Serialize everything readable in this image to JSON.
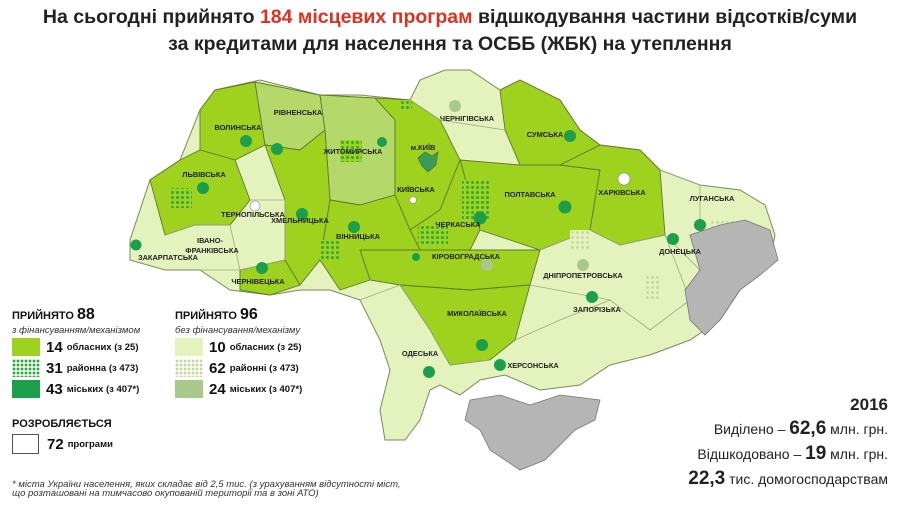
{
  "title": {
    "line1_prefix": "На сьогодні прийнято ",
    "line1_highlight": "184 місцевих програм",
    "line1_suffix": " відшкодування частини відсотків/суми",
    "line2": "за кредитами для населення та ОСББ (ЖБК) на утеплення"
  },
  "colors": {
    "funded_region": "#9fd11f",
    "unfunded_region": "#e4f2bd",
    "funded_city": "#1c9e4a",
    "unfunded_city": "#a9c98c",
    "occupied": "#b5b5b5",
    "highlight": "#e0301e"
  },
  "regions": [
    {
      "name": "ВОЛИНСЬКА",
      "funded": true
    },
    {
      "name": "РІВНЕНСЬКА",
      "funded": true
    },
    {
      "name": "ЖИТОМИРСЬКА",
      "funded": true
    },
    {
      "name": "м.КИЇВ",
      "funded": true
    },
    {
      "name": "ЧЕРНІГІВСЬКА",
      "funded": false
    },
    {
      "name": "СУМСЬКА",
      "funded": true
    },
    {
      "name": "ЛЬВІВСЬКА",
      "funded": true
    },
    {
      "name": "ТЕРНОПІЛЬСЬКА",
      "funded": false
    },
    {
      "name": "ХМЕЛЬНИЦЬКА",
      "funded": true
    },
    {
      "name": "ВІННИЦЬКА",
      "funded": true
    },
    {
      "name": "КИЇВСЬКА",
      "funded": true
    },
    {
      "name": "ЧЕРКАСЬКА",
      "funded": true
    },
    {
      "name": "ПОЛТАВСЬКА",
      "funded": true
    },
    {
      "name": "ХАРКІВСЬКА",
      "funded": true
    },
    {
      "name": "ЛУГАНСЬКА",
      "funded": false
    },
    {
      "name": "ІВАНО-",
      "funded": false
    },
    {
      "name": "ФРАНКІВСЬКА",
      "funded": false
    },
    {
      "name": "ЗАКАРПАТСЬКА",
      "funded": false
    },
    {
      "name": "ЧЕРНІВЕЦЬКА",
      "funded": true
    },
    {
      "name": "КІРОВОГРАДСЬКА",
      "funded": true
    },
    {
      "name": "ДНІПРОПЕТРОВСЬКА",
      "funded": false
    },
    {
      "name": "ДОНЕЦЬКА",
      "funded": false
    },
    {
      "name": "ЗАПОРІЗЬКА",
      "funded": false
    },
    {
      "name": "МИКОЛАЇВСЬКА",
      "funded": true
    },
    {
      "name": "ОДЕСЬКА",
      "funded": false
    },
    {
      "name": "ХЕРСОНСЬКА",
      "funded": false
    }
  ],
  "legend": {
    "funded": {
      "heading": "прийнято",
      "count": "88",
      "subtitle": "з фінансуванням/механізмом",
      "rows": [
        {
          "count": "14",
          "label": "обласних (з 25)"
        },
        {
          "count": "31",
          "label": "районна (з 473)"
        },
        {
          "count": "43",
          "label": "міських (з 407*)"
        }
      ]
    },
    "unfunded": {
      "heading": "прийнято",
      "count": "96",
      "subtitle": "без фінансування/механізму",
      "rows": [
        {
          "count": "10",
          "label": "обласних (з 25)"
        },
        {
          "count": "62",
          "label": "районні (з 473)"
        },
        {
          "count": "24",
          "label": "міських (з 407*)"
        }
      ]
    },
    "developing": {
      "heading": "розробляється",
      "count": "72",
      "label": "програми"
    }
  },
  "footnote": "* міста України населення, яких складає від 2,5 тис. (з урахуванням відсутності міст, що розташовані на тимчасово окупованій території та в зоні АТО)",
  "stats": {
    "year": "2016",
    "allocated_label": "Виділено – ",
    "allocated_value": "62,6",
    "allocated_unit": " млн. грн.",
    "reimbursed_label": "Відшкодовано – ",
    "reimbursed_value": "19",
    "reimbursed_unit": " млн. грн.",
    "households_value": "22,3",
    "households_label": " тис. домогосподарствам"
  }
}
